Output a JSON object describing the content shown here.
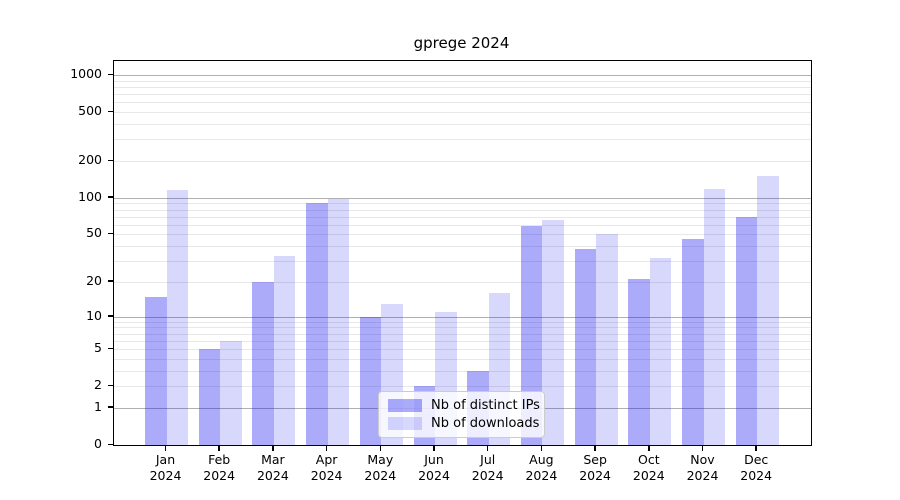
{
  "chart_data": {
    "type": "bar",
    "title": "gprege 2024",
    "xlabel": "",
    "ylabel": "",
    "yscale": "log1p",
    "grid": true,
    "legend_position": "lower center",
    "categories": [
      "Jan 2024",
      "Feb 2024",
      "Mar 2024",
      "Apr 2024",
      "May 2024",
      "Jun 2024",
      "Jul 2024",
      "Aug 2024",
      "Sep 2024",
      "Oct 2024",
      "Nov 2024",
      "Dec 2024"
    ],
    "series": [
      {
        "name": "Nb of distinct IPs",
        "color": "rgba(10,10,240,0.34)",
        "values": [
          15,
          5,
          20,
          90,
          10,
          2,
          3,
          59,
          38,
          21,
          46,
          70
        ]
      },
      {
        "name": "Nb of downloads",
        "color": "rgba(10,10,240,0.16)",
        "values": [
          115,
          6,
          33,
          97,
          13,
          11,
          16,
          66,
          50,
          32,
          118,
          150
        ]
      }
    ],
    "yticks": [
      0,
      1,
      2,
      5,
      10,
      20,
      50,
      100,
      200,
      500,
      1000
    ],
    "ylim": [
      0,
      1300
    ],
    "colors": {
      "grid_major": "#b0b0b0",
      "grid_minor": "#e8e8e8",
      "spine": "#000000",
      "legend_background": "rgba(255,255,255,0.8)",
      "legend_border": "#cccccc",
      "text": "#000000"
    }
  }
}
